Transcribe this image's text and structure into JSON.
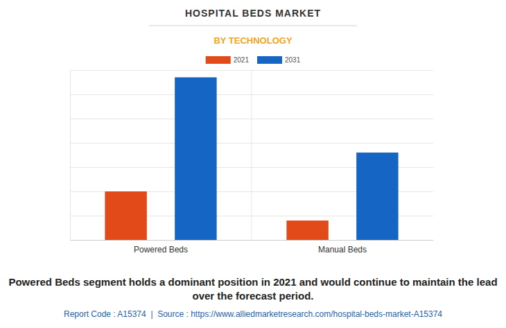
{
  "chart_data": {
    "type": "bar",
    "title": "HOSPITAL BEDS MARKET",
    "subtitle": "BY TECHNOLOGY",
    "categories": [
      "Powered Beds",
      "Manual Beds"
    ],
    "series": [
      {
        "name": "2021",
        "color": "#e34a1a",
        "values": [
          2.0,
          0.8
        ]
      },
      {
        "name": "2031",
        "color": "#1565c4",
        "values": [
          6.7,
          3.6
        ]
      }
    ],
    "ylim": [
      0,
      7
    ],
    "yticks": [
      0,
      1,
      2,
      3,
      4,
      5,
      6,
      7
    ],
    "grid": true,
    "tick_labels": "x",
    "legend": "top",
    "annotations": [
      "Powered Beds segment holds a dominant position in 2021 and would continue to maintain the lead over the forecast period.",
      "Report Code : A15374  |  Source : https://www.alliedmarketresearch.com/hospital-beds-market-A15374"
    ]
  }
}
